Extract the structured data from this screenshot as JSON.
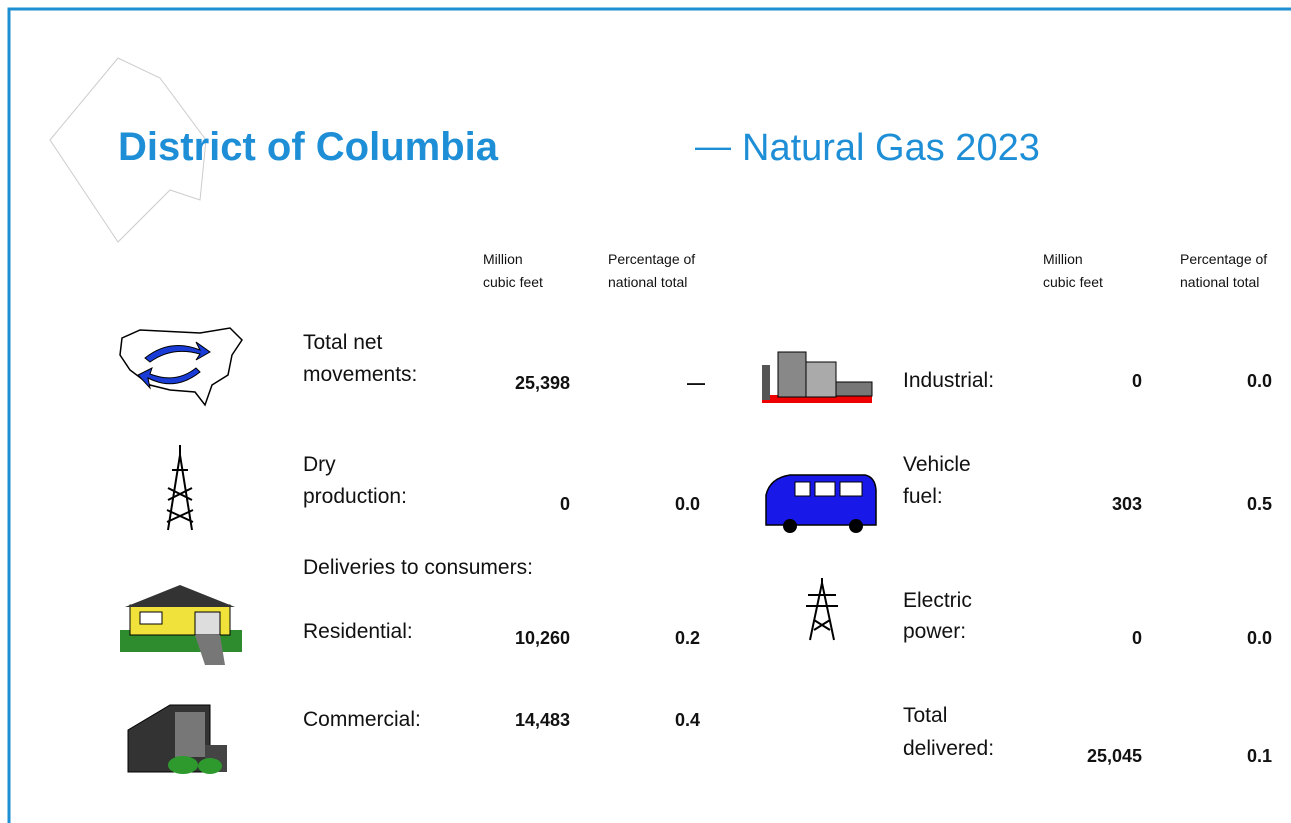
{
  "title": "District of Columbia",
  "separator": "—",
  "subtitle": "Natural Gas 2023",
  "left": {
    "headers": [
      [
        "Million",
        "cubic feet"
      ],
      [
        "Percentage of",
        "national total"
      ]
    ],
    "rows": [
      {
        "label": [
          "Total net",
          "movements:"
        ],
        "volume": "25,398",
        "percent": "—"
      },
      {
        "label": [
          "Dry",
          "production:"
        ],
        "volume": "0",
        "percent": "0.0"
      }
    ],
    "section": "Deliveries to consumers:",
    "deliveries": [
      {
        "label": [
          "Residential:"
        ],
        "volume": "10,260",
        "percent": "0.2"
      },
      {
        "label": [
          "Commercial:"
        ],
        "volume": "14,483",
        "percent": "0.4"
      }
    ]
  },
  "right": {
    "headers": [
      [
        "Million",
        "cubic feet"
      ],
      [
        "Percentage of",
        "national total"
      ]
    ],
    "rows": [
      {
        "label": [
          "Industrial:"
        ],
        "volume": "0",
        "percent": "0.0"
      },
      {
        "label": [
          "Vehicle",
          "fuel:"
        ],
        "volume": "303",
        "percent": "0.5"
      },
      {
        "label": [
          "Electric",
          "power:"
        ],
        "volume": "0",
        "percent": "0.0"
      },
      {
        "label": [
          "Total",
          "delivered:"
        ],
        "volume": "25,045",
        "percent": "0.1"
      }
    ]
  }
}
